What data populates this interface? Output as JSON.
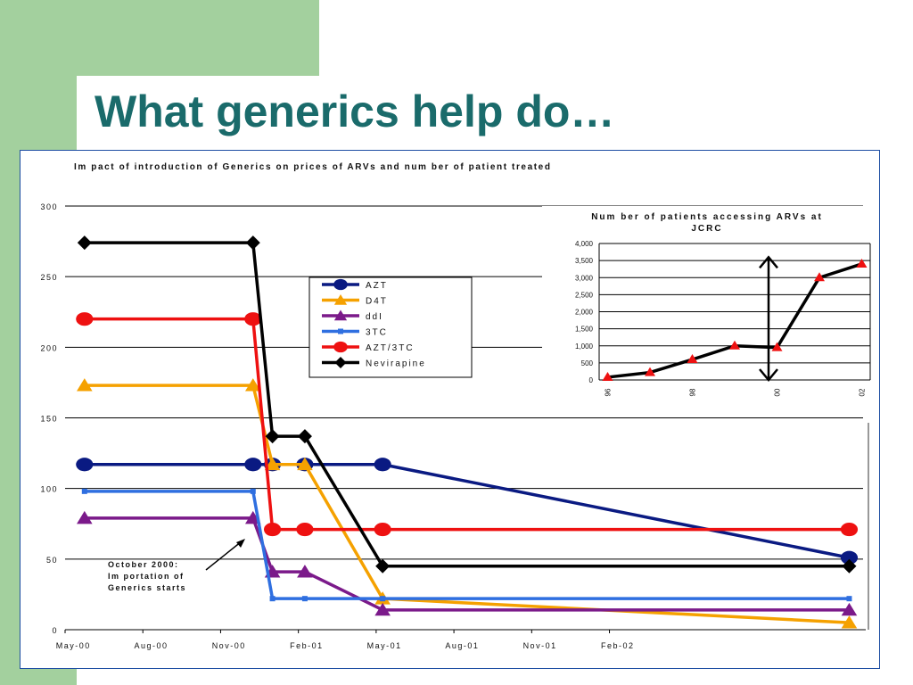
{
  "slide": {
    "title": "What generics help do…"
  },
  "colors": {
    "background_green": "#a3d09e",
    "title_teal": "#1a6b6b",
    "frame_blue": "#1f4fa3"
  },
  "chart_data": [
    {
      "type": "line",
      "title": "Im pact of introduction of Generics on prices of ARVs and num ber of patient treated",
      "xlabel": "",
      "ylabel": "",
      "x_tick_labels": [
        "May-00",
        "Aug-00",
        "Nov-00",
        "Feb-01",
        "May-01",
        "Aug-01",
        "Nov-01",
        "Feb-02"
      ],
      "y_ticks": [
        "0",
        "50",
        "100",
        "150",
        "200",
        "250",
        "300"
      ],
      "ylim": [
        0,
        300
      ],
      "x_unit": "months since May-00",
      "legend_position": "center",
      "grid": true,
      "series": [
        {
          "name": "AZT",
          "color": "#0a1a82",
          "marker": "circle",
          "points": [
            [
              0,
              117
            ],
            [
              6.5,
              117
            ],
            [
              7.25,
              117
            ],
            [
              8.5,
              117
            ],
            [
              11.5,
              117
            ],
            [
              29.5,
              51
            ]
          ]
        },
        {
          "name": "D4T",
          "color": "#f5a100",
          "marker": "triangle",
          "points": [
            [
              0,
              173
            ],
            [
              6.5,
              173
            ],
            [
              7.25,
              117
            ],
            [
              8.5,
              117
            ],
            [
              11.5,
              22
            ],
            [
              29.5,
              5
            ]
          ]
        },
        {
          "name": "ddI",
          "color": "#7b1a8a",
          "marker": "triangle",
          "points": [
            [
              0,
              79
            ],
            [
              6.5,
              79
            ],
            [
              7.25,
              41
            ],
            [
              8.5,
              41
            ],
            [
              11.5,
              14
            ],
            [
              29.5,
              14
            ]
          ]
        },
        {
          "name": "3TC",
          "color": "#2f6fe0",
          "marker": "square",
          "points": [
            [
              0,
              98
            ],
            [
              6.5,
              98
            ],
            [
              7.25,
              22
            ],
            [
              8.5,
              22
            ],
            [
              11.5,
              22
            ],
            [
              29.5,
              22
            ]
          ]
        },
        {
          "name": "AZT/3TC",
          "color": "#ee1111",
          "marker": "circle",
          "points": [
            [
              0,
              220
            ],
            [
              6.5,
              220
            ],
            [
              7.25,
              71
            ],
            [
              8.5,
              71
            ],
            [
              11.5,
              71
            ],
            [
              29.5,
              71
            ]
          ]
        },
        {
          "name": "Nevirapine",
          "color": "#000000",
          "marker": "diamond",
          "points": [
            [
              0,
              274
            ],
            [
              6.5,
              274
            ],
            [
              7.25,
              137
            ],
            [
              8.5,
              137
            ],
            [
              11.5,
              45
            ],
            [
              29.5,
              45
            ]
          ]
        }
      ],
      "annotation": {
        "lines": [
          "October 2000:",
          "Im portation of",
          "Generics starts"
        ]
      }
    },
    {
      "type": "line",
      "title_lines": [
        "Num ber of patients accessing ARVs at",
        "JCRC"
      ],
      "x_tick_labels": [
        "96",
        "98",
        "00",
        "02"
      ],
      "x_values": [
        1996,
        1997,
        1998,
        1999,
        2000,
        2001,
        2002
      ],
      "values": [
        80,
        220,
        600,
        1000,
        950,
        3000,
        3400
      ],
      "y_ticks": [
        "0",
        "500",
        "1,000",
        "1,500",
        "2,000",
        "2,500",
        "3,000",
        "3,500",
        "4,000"
      ],
      "ylim": [
        0,
        4000
      ],
      "color": "#000000",
      "marker_color": "#ee1111",
      "arrow": {
        "x": 1999.8,
        "from": 3600,
        "to": 0
      }
    }
  ]
}
